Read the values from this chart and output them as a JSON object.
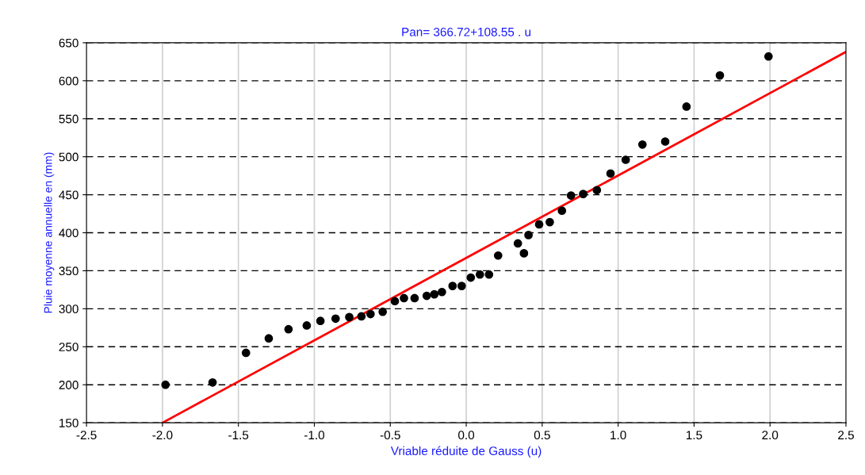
{
  "chart_data": {
    "type": "scatter",
    "title": "Pan= 366.72+108.55 . u",
    "xlabel": "Vriable réduite de Gauss (u)",
    "ylabel": "Pluie moyenne annuelle en (mm)",
    "xlim": [
      -2.5,
      2.5
    ],
    "xticks": [
      -2.5,
      {
        "value": -2,
        "label": "-2.0"
      },
      -1.5,
      {
        "value": -1,
        "label": "-1.0"
      },
      -0.5,
      {
        "value": 0,
        "label": "0.0"
      },
      0.5,
      {
        "value": 1,
        "label": "1.0"
      },
      1.5,
      {
        "value": 2,
        "label": "2.0"
      },
      2.5
    ],
    "ylim": [
      150,
      650
    ],
    "yticks": [
      150,
      200,
      250,
      300,
      350,
      400,
      450,
      500,
      550,
      600,
      650
    ],
    "grid": true,
    "series": [
      {
        "marker": "circle",
        "color": "#000000",
        "x": [
          -1.98,
          -1.67,
          -1.45,
          -1.3,
          -1.17,
          -1.05,
          -0.96,
          -0.86,
          -0.77,
          -0.69,
          -0.63,
          -0.55,
          -0.47,
          -0.41,
          -0.34,
          -0.26,
          -0.21,
          -0.16,
          -0.09,
          -0.03,
          0.03,
          0.09,
          0.15,
          0.21,
          0.34,
          0.38,
          0.41,
          0.48,
          0.55,
          0.63,
          0.69,
          0.77,
          0.86,
          0.95,
          1.05,
          1.16,
          1.31,
          1.45,
          1.67,
          1.99
        ],
        "values": [
          200,
          203,
          242,
          261,
          273,
          278,
          284,
          287,
          289,
          290,
          293,
          296,
          310,
          314,
          314,
          317,
          319,
          322,
          330,
          330,
          341,
          345,
          345,
          370,
          386,
          373,
          397,
          411,
          414,
          429,
          449,
          451,
          456,
          478,
          496,
          516,
          520,
          566,
          607,
          632
        ]
      },
      {
        "type": "line",
        "color": "#ff0000",
        "x": [
          -2.0,
          2.5
        ],
        "values": [
          150,
          638
        ]
      }
    ]
  }
}
